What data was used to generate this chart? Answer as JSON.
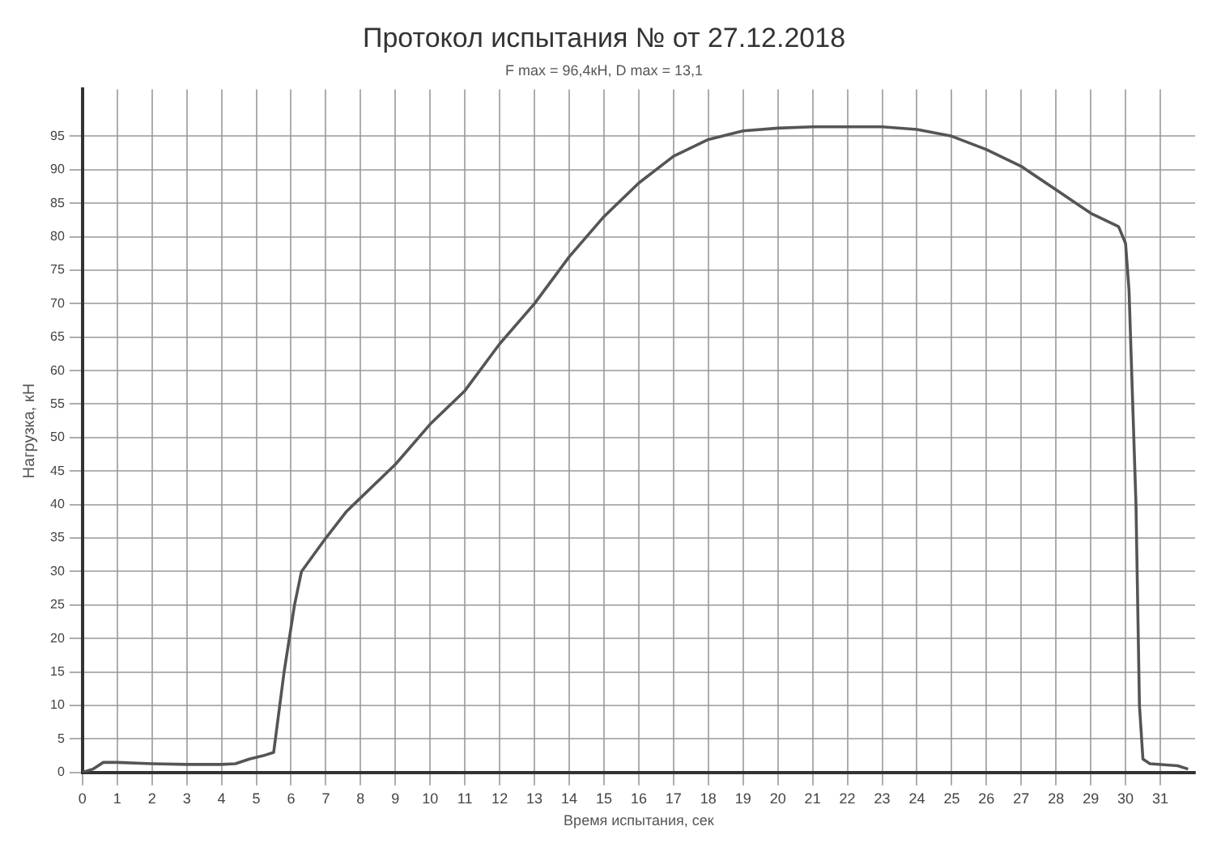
{
  "chart_data": {
    "type": "line",
    "title": "Протокол испытания № от 27.12.2018",
    "subtitle": "F max = 96,4кН, D max = 13,1",
    "xlabel": "Время испытания, сек",
    "ylabel": "Нагрузка, кН",
    "x": [
      0,
      0.3,
      0.6,
      1,
      2,
      3,
      4,
      4.4,
      4.8,
      5.2,
      5.5,
      5.8,
      6.1,
      6.3,
      7,
      7.6,
      8,
      9,
      10,
      11,
      12,
      13,
      14,
      15,
      16,
      17,
      18,
      19,
      20,
      21,
      22,
      23,
      24,
      25,
      26,
      27,
      28,
      29,
      29.8,
      30,
      30.1,
      30.3,
      30.4,
      30.5,
      30.7,
      31.5,
      31.8
    ],
    "series": [
      {
        "color": "#555555",
        "values": [
          0,
          0.5,
          1.5,
          1.5,
          1.3,
          1.2,
          1.2,
          1.3,
          2,
          2.5,
          3,
          15,
          25,
          30,
          35,
          39,
          41,
          46,
          52,
          57,
          64,
          70,
          77,
          83,
          88,
          92,
          94.5,
          95.8,
          96.2,
          96.4,
          96.4,
          96.4,
          96,
          95,
          93,
          90.5,
          87,
          83.5,
          81.5,
          79,
          72,
          40,
          10,
          2,
          1.3,
          1,
          0.5
        ]
      }
    ],
    "xlim": [
      0,
      32
    ],
    "xticks": [
      0,
      1,
      2,
      3,
      4,
      5,
      6,
      7,
      8,
      9,
      10,
      11,
      12,
      13,
      14,
      15,
      16,
      17,
      18,
      19,
      20,
      21,
      22,
      23,
      24,
      25,
      26,
      27,
      28,
      29,
      30,
      31
    ],
    "ylim": [
      0,
      102
    ],
    "yticks": [
      0,
      5,
      10,
      15,
      20,
      25,
      30,
      35,
      40,
      45,
      50,
      55,
      60,
      65,
      70,
      75,
      80,
      85,
      90,
      95
    ],
    "grid": true,
    "legend": false,
    "marker": "none",
    "line_style": "solid"
  }
}
